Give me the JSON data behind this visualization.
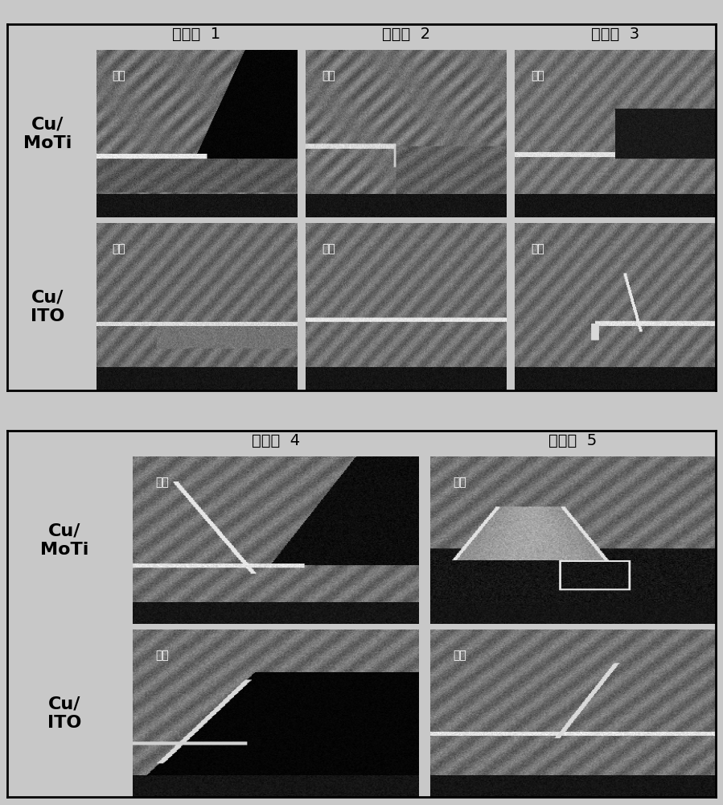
{
  "background_color": "#d0d0d0",
  "top_section": {
    "col_labels": [
      "实施例  1",
      "实施例  2",
      "实施例  3"
    ],
    "row_labels": [
      "Cu/\nMoTi",
      "Cu/\nITO"
    ]
  },
  "bottom_section": {
    "col_labels": [
      "实施例  4",
      "实施例  5"
    ],
    "row_labels": [
      "Cu/\nMoTi",
      "Cu/\nITO"
    ]
  },
  "cell_label": "印脹",
  "outer_bg": "#c8c8c8",
  "section_gap_color": "#c8c8c8",
  "grid_line_color": "#000000",
  "label_color": "#000000",
  "col_header_fontsize": 14,
  "row_label_fontsize": 16,
  "cell_label_fontsize": 10
}
